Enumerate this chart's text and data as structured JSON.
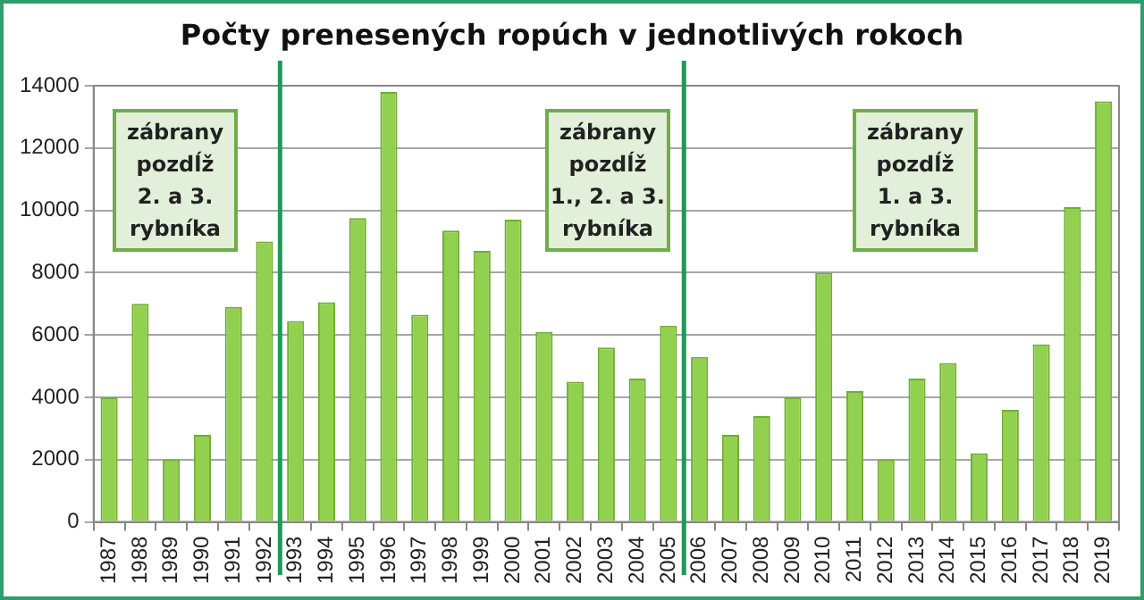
{
  "chart_data": {
    "type": "bar",
    "title": "Počty prenesených ropúch v jednotlivých rokoch",
    "x": [
      1987,
      1988,
      1989,
      1990,
      1991,
      1992,
      1993,
      1994,
      1995,
      1996,
      1997,
      1998,
      1999,
      2000,
      2001,
      2002,
      2003,
      2004,
      2005,
      2006,
      2007,
      2008,
      2009,
      2010,
      2011,
      2012,
      2013,
      2014,
      2015,
      2016,
      2017,
      2018,
      2019
    ],
    "values": [
      4000,
      7000,
      2000,
      2800,
      6900,
      9000,
      6450,
      7050,
      9750,
      13800,
      6650,
      9350,
      8700,
      9700,
      6100,
      4500,
      5600,
      4600,
      6300,
      5300,
      2800,
      3400,
      4000,
      8000,
      4200,
      2000,
      4600,
      5100,
      2200,
      3600,
      5700,
      10100,
      13500
    ],
    "color": "#92d050",
    "xlim": [
      1986.5,
      2019.5
    ],
    "xticks": [
      1987,
      1988,
      1989,
      1990,
      1991,
      1992,
      1993,
      1994,
      1995,
      1996,
      1997,
      1998,
      1999,
      2000,
      2001,
      2002,
      2003,
      2004,
      2005,
      2006,
      2007,
      2008,
      2009,
      2010,
      2011,
      2012,
      2013,
      2014,
      2015,
      2016,
      2017,
      2018,
      2019
    ],
    "ylim": [
      0,
      14000
    ],
    "yticks": [
      0,
      2000,
      4000,
      6000,
      8000,
      10000,
      12000,
      14000
    ],
    "grid": "y",
    "legend": false,
    "ref_lines": [
      {
        "axis": "x",
        "value": 1992.5,
        "color": "#1e9a5a"
      },
      {
        "axis": "x",
        "value": 2005.5,
        "color": "#1e9a5a"
      }
    ],
    "annotations": [
      "zábrany\npozdĺž\n2. a 3.\nrybníka",
      "zábrany\npozdĺž\n1., 2. a 3.\nrybníka",
      "zábrany\npozdĺž\n1. a 3.\nrybníka"
    ]
  }
}
